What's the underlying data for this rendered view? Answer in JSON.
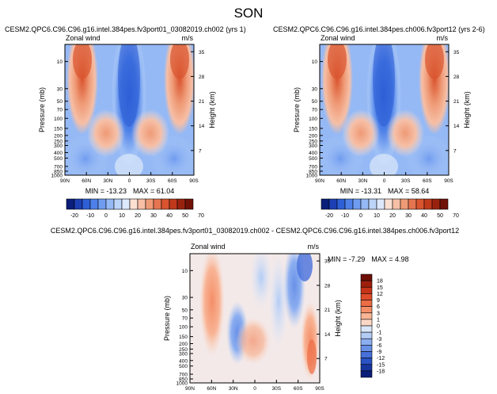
{
  "title": "SON",
  "variable_label": "Zonal wind",
  "units_label": "m/s",
  "left_axis_label": "Pressure (mb)",
  "right_axis_label": "Height (km)",
  "pressure_ticks": [
    "10",
    "30",
    "50",
    "70",
    "100",
    "150",
    "200",
    "250",
    "300",
    "400",
    "500",
    "700",
    "850",
    "1000"
  ],
  "height_ticks": [
    "35",
    "28",
    "21",
    "14",
    "7"
  ],
  "lat_ticks": [
    "90N",
    "60N",
    "30N",
    "0",
    "30S",
    "60S",
    "90S"
  ],
  "abs_levels": [
    "-20",
    "-10",
    "0",
    "10",
    "20",
    "30",
    "40",
    "50",
    "70"
  ],
  "abs_colors": [
    "#0a1e7a",
    "#1c3fb4",
    "#2e5fd6",
    "#4d80e8",
    "#6f9cf0",
    "#95b9f5",
    "#bcd4f8",
    "#dde9fb",
    "#fbe0d2",
    "#f6bfa6",
    "#ef9a76",
    "#e57450",
    "#d9542f",
    "#c0391b",
    "#99220e",
    "#701106"
  ],
  "diff_levels": [
    "18",
    "15",
    "12",
    "9",
    "6",
    "3",
    "1",
    "0",
    "-1",
    "-3",
    "-6",
    "-9",
    "-12",
    "-15",
    "-18"
  ],
  "diff_colors": [
    "#6e0f07",
    "#9e1f0d",
    "#c53419",
    "#de4c2b",
    "#ec6c45",
    "#f48e68",
    "#f8b495",
    "#fbd8c6",
    "#d9e6fa",
    "#b3ccf6",
    "#8caef0",
    "#6890e7",
    "#4770db",
    "#2b52c4",
    "#17359f",
    "#0a1e7a"
  ],
  "chart_data": [
    {
      "type": "heatmap",
      "title": "CESM2.QPC6.C96.C96.g16.intel.384pes.fv3port01_03082019.ch002 (yrs 1)",
      "xlabel": "",
      "ylabel": "Pressure (mb)",
      "y2label": "Height (km)",
      "x_ticks": [
        "90N",
        "60N",
        "30N",
        "0",
        "30S",
        "60S",
        "90S"
      ],
      "y_ticks": [
        "10",
        "30",
        "50",
        "70",
        "100",
        "150",
        "200",
        "250",
        "300",
        "400",
        "500",
        "700",
        "850",
        "1000"
      ],
      "y2_ticks": [
        "35",
        "28",
        "21",
        "14",
        "7"
      ],
      "xlim": [
        -90,
        90
      ],
      "ylim": [
        1000,
        5
      ],
      "y_scale": "log",
      "units": "m/s",
      "min": -13.23,
      "max": 61.04,
      "min_label": "MIN = -13.23",
      "max_label": "MAX = 61.04",
      "features": [
        {
          "kind": "jet",
          "lat": -62,
          "p": 8,
          "value": 60
        },
        {
          "kind": "jet",
          "lat": 62,
          "p": 8,
          "value": 55
        },
        {
          "kind": "jet",
          "lat": -31,
          "p": 190,
          "value": 35
        },
        {
          "kind": "jet",
          "lat": 31,
          "p": 190,
          "value": 33
        },
        {
          "kind": "easterly",
          "lat": 0,
          "p": 40,
          "value": -12
        }
      ]
    },
    {
      "type": "heatmap",
      "title": "CESM2.QPC6.C96.C96.g16.intel.384pes.ch006.fv3port12 (yrs 2-6)",
      "xlabel": "",
      "ylabel": "Pressure (mb)",
      "y2label": "Height (km)",
      "x_ticks": [
        "90N",
        "60N",
        "30N",
        "0",
        "30S",
        "60S",
        "90S"
      ],
      "y_ticks": [
        "10",
        "30",
        "50",
        "70",
        "100",
        "150",
        "200",
        "250",
        "300",
        "400",
        "500",
        "700",
        "850",
        "1000"
      ],
      "y2_ticks": [
        "35",
        "28",
        "21",
        "14",
        "7"
      ],
      "xlim": [
        -90,
        90
      ],
      "ylim": [
        1000,
        5
      ],
      "y_scale": "log",
      "units": "m/s",
      "min": -13.31,
      "max": 58.64,
      "min_label": "MIN = -13.31",
      "max_label": "MAX = 58.64",
      "features": [
        {
          "kind": "jet",
          "lat": -62,
          "p": 8,
          "value": 58
        },
        {
          "kind": "jet",
          "lat": 62,
          "p": 8,
          "value": 53
        },
        {
          "kind": "jet",
          "lat": -31,
          "p": 190,
          "value": 35
        },
        {
          "kind": "jet",
          "lat": 31,
          "p": 190,
          "value": 33
        },
        {
          "kind": "easterly",
          "lat": 0,
          "p": 40,
          "value": -12
        }
      ]
    },
    {
      "type": "heatmap",
      "title": "CESM2.QPC6.C96.C96.g16.intel.384pes.fv3port01_03082019.ch002 - CESM2.QPC6.C96.C96.g16.intel.384pes.ch006.fv3port12",
      "xlabel": "",
      "ylabel": "Pressure (mb)",
      "y2label": "Height (km)",
      "x_ticks": [
        "90N",
        "60N",
        "30N",
        "0",
        "30S",
        "60S",
        "90S"
      ],
      "y_ticks": [
        "10",
        "30",
        "50",
        "70",
        "100",
        "150",
        "200",
        "250",
        "300",
        "400",
        "500",
        "700",
        "850",
        "1000"
      ],
      "y2_ticks": [
        "35",
        "28",
        "21",
        "14",
        "7"
      ],
      "xlim": [
        -90,
        90
      ],
      "ylim": [
        1000,
        5
      ],
      "y_scale": "log",
      "units": "m/s",
      "min": -7.29,
      "max": 4.98,
      "min_label": "MIN = -7.29",
      "max_label": "MAX = 4.98",
      "features": [
        {
          "kind": "positive",
          "lat": 62,
          "p": 60,
          "value": 3.5
        },
        {
          "kind": "negative",
          "lat": 40,
          "p": 150,
          "value": -3
        },
        {
          "kind": "negative",
          "lat": -45,
          "p": 30,
          "value": -5
        },
        {
          "kind": "negative",
          "lat": -70,
          "p": 20,
          "value": -6
        },
        {
          "kind": "positive",
          "lat": -78,
          "p": 250,
          "value": 4.5
        }
      ]
    }
  ]
}
